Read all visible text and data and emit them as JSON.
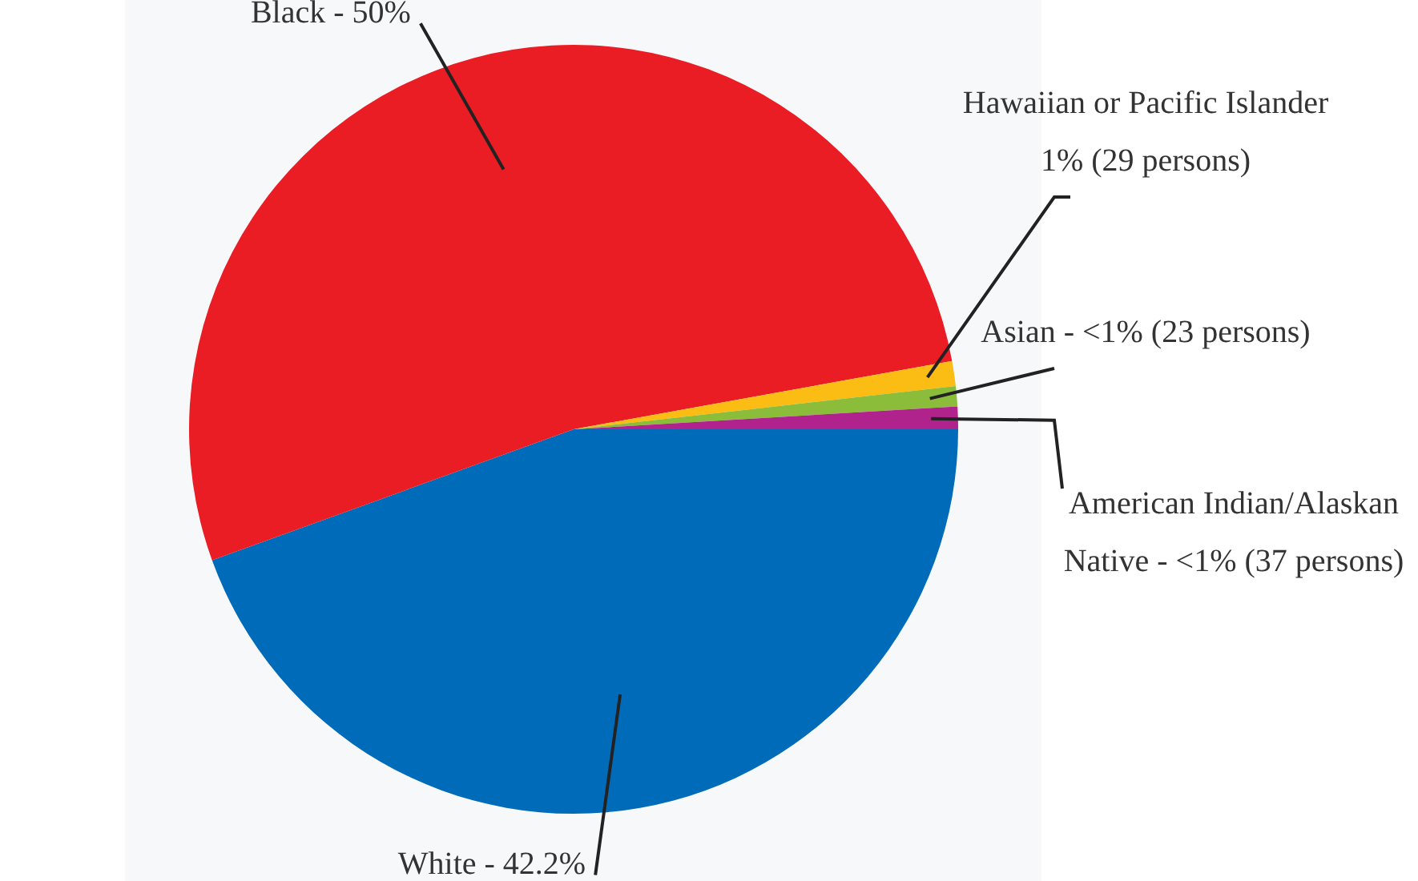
{
  "chart_data": {
    "type": "pie",
    "categories": [
      "White - 42.2%",
      "Black - 50%",
      "Hawaiian or Pacific Islander 1% (29 persons)",
      "Asian - <1% (23 persons)",
      "American Indian/Alaskan Native - <1% (37 persons)"
    ],
    "values": [
      42.2,
      50,
      1,
      0.8,
      0.9
    ],
    "colors": [
      "#006bb8",
      "#ea1c24",
      "#fbbc14",
      "#8bbd3a",
      "#b0228c"
    ]
  }
}
